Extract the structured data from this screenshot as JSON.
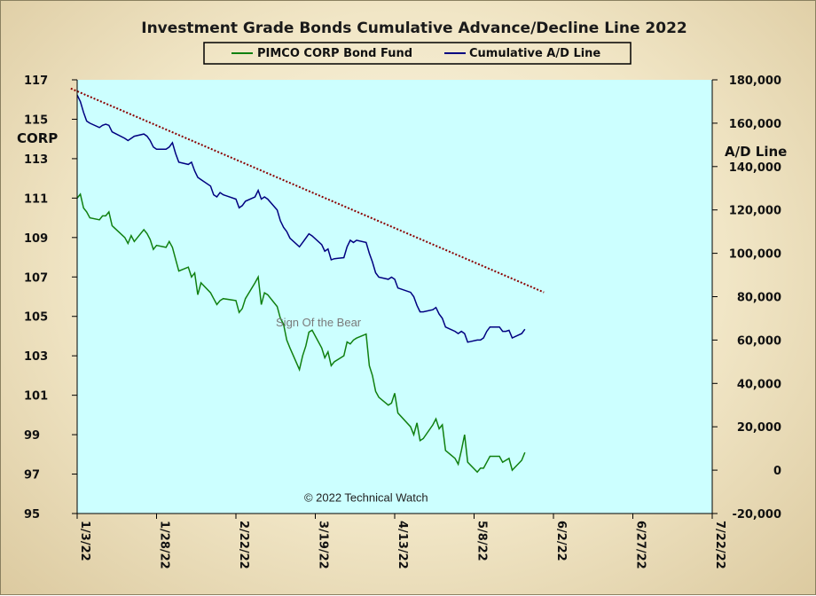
{
  "chart_data": {
    "type": "line",
    "title": "Investment Grade Bonds Cumulative Advance/Decline Line 2022",
    "ylabel_left": "CORP",
    "ylabel_right": "A/D Line",
    "ylim_left": [
      95,
      117
    ],
    "ylim_right": [
      -20000,
      180000
    ],
    "yticks_left": [
      95,
      97,
      99,
      101,
      103,
      105,
      107,
      109,
      111,
      113,
      115,
      117
    ],
    "yticks_right": [
      -20000,
      0,
      20000,
      40000,
      60000,
      80000,
      100000,
      120000,
      140000,
      160000,
      180000
    ],
    "ytick_labels_right": [
      "-20,000",
      "0",
      "20,000",
      "40,000",
      "60,000",
      "80,000",
      "100,000",
      "120,000",
      "140,000",
      "160,000",
      "180,000"
    ],
    "x_tick_labels": [
      "1/3/22",
      "1/28/22",
      "2/22/22",
      "3/19/22",
      "4/13/22",
      "5/8/22",
      "6/2/22",
      "6/27/22",
      "7/22/22"
    ],
    "xlim": [
      "2022-01-03",
      "2022-07-22"
    ],
    "legend_placement": "top-center",
    "grid": false,
    "series": [
      {
        "name": "PIMCO CORP Bond Fund",
        "axis": "left",
        "color": "#108010",
        "points": [
          [
            "2022-01-03",
            111.0
          ],
          [
            "2022-01-04",
            111.2
          ],
          [
            "2022-01-05",
            110.5
          ],
          [
            "2022-01-06",
            110.3
          ],
          [
            "2022-01-07",
            110.0
          ],
          [
            "2022-01-10",
            109.9
          ],
          [
            "2022-01-11",
            110.1
          ],
          [
            "2022-01-12",
            110.1
          ],
          [
            "2022-01-13",
            110.3
          ],
          [
            "2022-01-14",
            109.6
          ],
          [
            "2022-01-18",
            109.0
          ],
          [
            "2022-01-19",
            108.7
          ],
          [
            "2022-01-20",
            109.1
          ],
          [
            "2022-01-21",
            108.8
          ],
          [
            "2022-01-24",
            109.4
          ],
          [
            "2022-01-25",
            109.2
          ],
          [
            "2022-01-26",
            108.9
          ],
          [
            "2022-01-27",
            108.4
          ],
          [
            "2022-01-28",
            108.6
          ],
          [
            "2022-01-31",
            108.5
          ],
          [
            "2022-02-01",
            108.8
          ],
          [
            "2022-02-02",
            108.5
          ],
          [
            "2022-02-03",
            107.9
          ],
          [
            "2022-02-04",
            107.3
          ],
          [
            "2022-02-07",
            107.5
          ],
          [
            "2022-02-08",
            107.0
          ],
          [
            "2022-02-09",
            107.2
          ],
          [
            "2022-02-10",
            106.1
          ],
          [
            "2022-02-11",
            106.7
          ],
          [
            "2022-02-14",
            106.2
          ],
          [
            "2022-02-15",
            105.9
          ],
          [
            "2022-02-16",
            105.6
          ],
          [
            "2022-02-17",
            105.8
          ],
          [
            "2022-02-18",
            105.9
          ],
          [
            "2022-02-22",
            105.8
          ],
          [
            "2022-02-23",
            105.2
          ],
          [
            "2022-02-24",
            105.4
          ],
          [
            "2022-02-25",
            105.9
          ],
          [
            "2022-02-28",
            106.7
          ],
          [
            "2022-03-01",
            107.0
          ],
          [
            "2022-03-02",
            105.6
          ],
          [
            "2022-03-03",
            106.2
          ],
          [
            "2022-03-04",
            106.1
          ],
          [
            "2022-03-07",
            105.5
          ],
          [
            "2022-03-08",
            104.9
          ],
          [
            "2022-03-09",
            104.6
          ],
          [
            "2022-03-10",
            103.8
          ],
          [
            "2022-03-11",
            103.4
          ],
          [
            "2022-03-14",
            102.3
          ],
          [
            "2022-03-15",
            103.0
          ],
          [
            "2022-03-16",
            103.5
          ],
          [
            "2022-03-17",
            104.2
          ],
          [
            "2022-03-18",
            104.3
          ],
          [
            "2022-03-21",
            103.4
          ],
          [
            "2022-03-22",
            102.9
          ],
          [
            "2022-03-23",
            103.2
          ],
          [
            "2022-03-24",
            102.5
          ],
          [
            "2022-03-25",
            102.7
          ],
          [
            "2022-03-28",
            103.0
          ],
          [
            "2022-03-29",
            103.7
          ],
          [
            "2022-03-30",
            103.6
          ],
          [
            "2022-03-31",
            103.8
          ],
          [
            "2022-04-01",
            103.9
          ],
          [
            "2022-04-04",
            104.1
          ],
          [
            "2022-04-05",
            102.5
          ],
          [
            "2022-04-06",
            102.0
          ],
          [
            "2022-04-07",
            101.2
          ],
          [
            "2022-04-08",
            100.9
          ],
          [
            "2022-04-11",
            100.5
          ],
          [
            "2022-04-12",
            100.6
          ],
          [
            "2022-04-13",
            101.1
          ],
          [
            "2022-04-14",
            100.1
          ],
          [
            "2022-04-18",
            99.4
          ],
          [
            "2022-04-19",
            99.0
          ],
          [
            "2022-04-20",
            99.6
          ],
          [
            "2022-04-21",
            98.7
          ],
          [
            "2022-04-22",
            98.8
          ],
          [
            "2022-04-25",
            99.5
          ],
          [
            "2022-04-26",
            99.8
          ],
          [
            "2022-04-27",
            99.3
          ],
          [
            "2022-04-28",
            99.5
          ],
          [
            "2022-04-29",
            98.2
          ],
          [
            "2022-05-02",
            97.8
          ],
          [
            "2022-05-03",
            97.5
          ],
          [
            "2022-05-04",
            98.2
          ],
          [
            "2022-05-05",
            99.0
          ],
          [
            "2022-05-06",
            97.6
          ],
          [
            "2022-05-09",
            97.1
          ],
          [
            "2022-05-10",
            97.3
          ],
          [
            "2022-05-11",
            97.3
          ],
          [
            "2022-05-12",
            97.6
          ],
          [
            "2022-05-13",
            97.9
          ],
          [
            "2022-05-16",
            97.9
          ],
          [
            "2022-05-17",
            97.6
          ],
          [
            "2022-05-18",
            97.7
          ],
          [
            "2022-05-19",
            97.8
          ],
          [
            "2022-05-20",
            97.2
          ],
          [
            "2022-05-23",
            97.7
          ],
          [
            "2022-05-24",
            98.1
          ]
        ]
      },
      {
        "name": "Cumulative A/D Line",
        "axis": "right",
        "color": "#000080",
        "points": [
          [
            "2022-01-03",
            173000
          ],
          [
            "2022-01-04",
            170000
          ],
          [
            "2022-01-05",
            165000
          ],
          [
            "2022-01-06",
            161000
          ],
          [
            "2022-01-07",
            160000
          ],
          [
            "2022-01-10",
            158000
          ],
          [
            "2022-01-11",
            159000
          ],
          [
            "2022-01-12",
            159500
          ],
          [
            "2022-01-13",
            159000
          ],
          [
            "2022-01-14",
            156000
          ],
          [
            "2022-01-18",
            153000
          ],
          [
            "2022-01-19",
            152000
          ],
          [
            "2022-01-20",
            153000
          ],
          [
            "2022-01-21",
            154000
          ],
          [
            "2022-01-24",
            155000
          ],
          [
            "2022-01-25",
            154000
          ],
          [
            "2022-01-26",
            152000
          ],
          [
            "2022-01-27",
            149000
          ],
          [
            "2022-01-28",
            148000
          ],
          [
            "2022-01-31",
            148000
          ],
          [
            "2022-02-01",
            149000
          ],
          [
            "2022-02-02",
            151000
          ],
          [
            "2022-02-03",
            146000
          ],
          [
            "2022-02-04",
            142000
          ],
          [
            "2022-02-07",
            141000
          ],
          [
            "2022-02-08",
            142000
          ],
          [
            "2022-02-09",
            138000
          ],
          [
            "2022-02-10",
            135000
          ],
          [
            "2022-02-11",
            134000
          ],
          [
            "2022-02-14",
            131000
          ],
          [
            "2022-02-15",
            127000
          ],
          [
            "2022-02-16",
            126000
          ],
          [
            "2022-02-17",
            128000
          ],
          [
            "2022-02-18",
            127000
          ],
          [
            "2022-02-22",
            125000
          ],
          [
            "2022-02-23",
            121000
          ],
          [
            "2022-02-24",
            122000
          ],
          [
            "2022-02-25",
            124000
          ],
          [
            "2022-02-28",
            126000
          ],
          [
            "2022-03-01",
            129000
          ],
          [
            "2022-03-02",
            125000
          ],
          [
            "2022-03-03",
            126000
          ],
          [
            "2022-03-04",
            125000
          ],
          [
            "2022-03-07",
            120000
          ],
          [
            "2022-03-08",
            115000
          ],
          [
            "2022-03-09",
            112000
          ],
          [
            "2022-03-10",
            110000
          ],
          [
            "2022-03-11",
            107000
          ],
          [
            "2022-03-14",
            103000
          ],
          [
            "2022-03-15",
            105000
          ],
          [
            "2022-03-16",
            107000
          ],
          [
            "2022-03-17",
            109000
          ],
          [
            "2022-03-18",
            108000
          ],
          [
            "2022-03-21",
            104000
          ],
          [
            "2022-03-22",
            101000
          ],
          [
            "2022-03-23",
            102000
          ],
          [
            "2022-03-24",
            97000
          ],
          [
            "2022-03-25",
            97500
          ],
          [
            "2022-03-28",
            98000
          ],
          [
            "2022-03-29",
            103000
          ],
          [
            "2022-03-30",
            106000
          ],
          [
            "2022-03-31",
            105000
          ],
          [
            "2022-04-01",
            106000
          ],
          [
            "2022-04-04",
            105000
          ],
          [
            "2022-04-05",
            100000
          ],
          [
            "2022-04-06",
            96000
          ],
          [
            "2022-04-07",
            91000
          ],
          [
            "2022-04-08",
            89000
          ],
          [
            "2022-04-11",
            88000
          ],
          [
            "2022-04-12",
            89000
          ],
          [
            "2022-04-13",
            88000
          ],
          [
            "2022-04-14",
            84000
          ],
          [
            "2022-04-18",
            82000
          ],
          [
            "2022-04-19",
            80000
          ],
          [
            "2022-04-20",
            76000
          ],
          [
            "2022-04-21",
            73000
          ],
          [
            "2022-04-22",
            73000
          ],
          [
            "2022-04-25",
            74000
          ],
          [
            "2022-04-26",
            75000
          ],
          [
            "2022-04-27",
            72000
          ],
          [
            "2022-04-28",
            70000
          ],
          [
            "2022-04-29",
            66000
          ],
          [
            "2022-05-02",
            64000
          ],
          [
            "2022-05-03",
            63000
          ],
          [
            "2022-05-04",
            64000
          ],
          [
            "2022-05-05",
            63000
          ],
          [
            "2022-05-06",
            59000
          ],
          [
            "2022-05-09",
            60000
          ],
          [
            "2022-05-10",
            60000
          ],
          [
            "2022-05-11",
            61000
          ],
          [
            "2022-05-12",
            64000
          ],
          [
            "2022-05-13",
            66000
          ],
          [
            "2022-05-16",
            66000
          ],
          [
            "2022-05-17",
            64000
          ],
          [
            "2022-05-18",
            64000
          ],
          [
            "2022-05-19",
            64500
          ],
          [
            "2022-05-20",
            61000
          ],
          [
            "2022-05-23",
            63000
          ],
          [
            "2022-05-24",
            65000
          ]
        ]
      }
    ],
    "trendline": {
      "axis": "right",
      "color": "#8b0000",
      "style": "dotted",
      "from": [
        "2022-01-01",
        176000
      ],
      "to": [
        "2022-05-30",
        82000
      ]
    },
    "annotations": [
      {
        "text": "Sign Of the Bear",
        "x": "2022-03-20",
        "y_left": 104.5,
        "color": "#7a7a7a"
      },
      {
        "text": "© 2022 Technical Watch",
        "x": "2022-04-04",
        "y_left": 95.6,
        "color": "#222222"
      }
    ],
    "plot_background": "#ccffff"
  }
}
